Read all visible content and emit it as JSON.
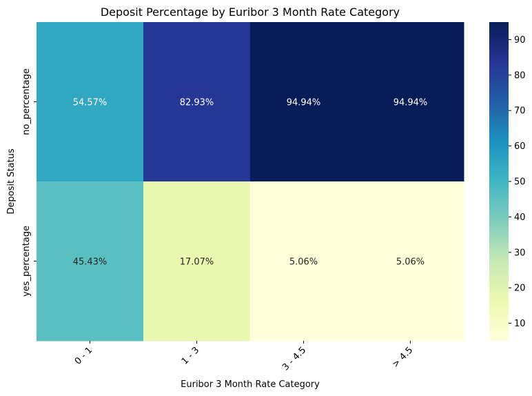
{
  "chart_data": {
    "type": "heatmap",
    "title": "Deposit Percentage by Euribor 3 Month Rate Category",
    "xlabel": "Euribor 3 Month Rate Category",
    "ylabel": "Deposit Status",
    "x_categories": [
      "0 - 1",
      "1 - 3",
      "3 - 4.5",
      "> 4.5"
    ],
    "y_categories": [
      "no_percentage",
      "yes_percentage"
    ],
    "values": [
      [
        54.57,
        82.93,
        94.94,
        94.94
      ],
      [
        45.43,
        17.07,
        5.06,
        5.06
      ]
    ],
    "cell_labels": [
      [
        "54.57%",
        "82.93%",
        "94.94%",
        "94.94%"
      ],
      [
        "45.43%",
        "17.07%",
        "5.06%",
        "5.06%"
      ]
    ],
    "colormap": "YlGnBu",
    "vmin": 5.06,
    "vmax": 94.94,
    "colorbar_ticks": [
      "10",
      "20",
      "30",
      "40",
      "50",
      "60",
      "70",
      "80",
      "90"
    ],
    "colorbar_tick_values": [
      10,
      20,
      30,
      40,
      50,
      60,
      70,
      80,
      90
    ]
  }
}
